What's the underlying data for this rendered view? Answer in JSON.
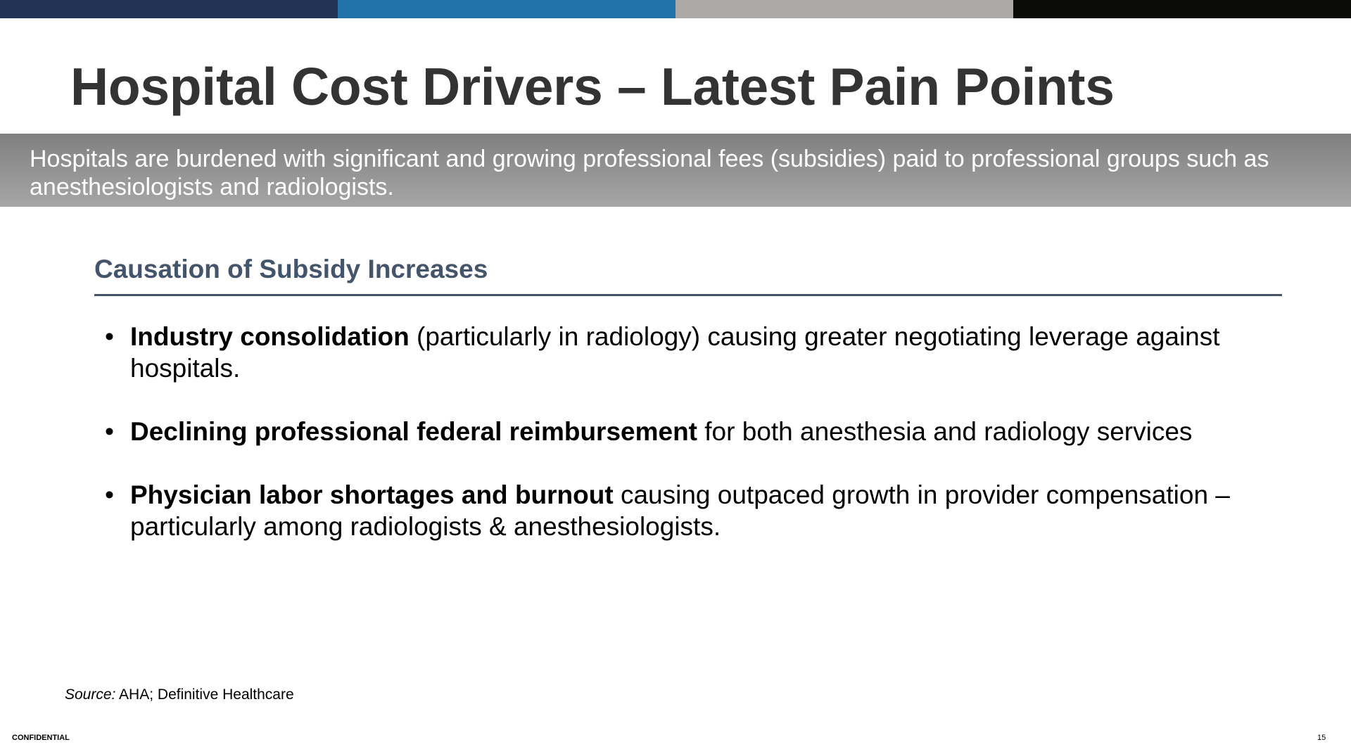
{
  "colors": {
    "bar1": "#223355",
    "bar2": "#2174aa",
    "bar3": "#abaaa6",
    "bar4": "#0b0b0a",
    "heading": "#44546a",
    "title": "#333333"
  },
  "title": "Hospital Cost Drivers – Latest Pain Points",
  "banner": "Hospitals are burdened with significant and growing professional fees (subsidies) paid to professional groups such as anesthesiologists and radiologists.",
  "section_heading": "Causation of Subsidy Increases",
  "bullets": [
    {
      "bold": "Industry consolidation",
      "text": " (particularly in radiology) causing greater negotiating leverage against hospitals."
    },
    {
      "bold": "Declining professional federal reimbursement",
      "text": " for both anesthesia and radiology services"
    },
    {
      "bold": "Physician labor shortages and burnout",
      "text": " causing outpaced growth in provider compensation – particularly among radiologists & anesthesiologists."
    }
  ],
  "bullet_glyph": "•",
  "source": {
    "label": "Source:",
    "text": " AHA; Definitive Healthcare"
  },
  "footer": {
    "confidential": "CONFIDENTIAL",
    "page_number": "15"
  }
}
